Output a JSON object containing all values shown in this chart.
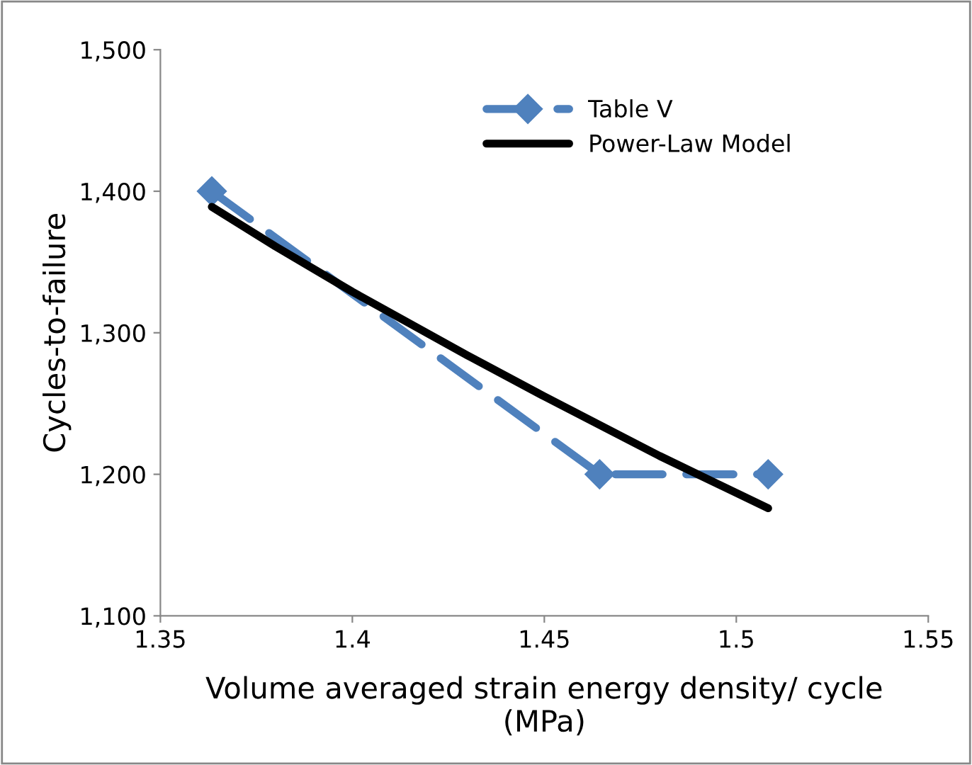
{
  "chart_data": {
    "type": "line",
    "xlabel": "Volume averaged strain energy density/ cycle\n(MPa)",
    "ylabel": "Cycles-to-failure",
    "series": [
      {
        "name": "Table V",
        "color": "#4f81bd",
        "x": [
          1.3634,
          1.4644,
          1.5083
        ],
        "values": [
          1400,
          1200,
          1200
        ],
        "marker": "diamond",
        "line_style": "dashed"
      },
      {
        "name": "Power-Law Model",
        "color": "#000000",
        "x": [
          1.3634,
          1.38,
          1.4,
          1.43,
          1.45,
          1.48,
          1.5083
        ],
        "values": [
          1389,
          1361,
          1329,
          1284,
          1255,
          1213,
          1176
        ],
        "marker": "none",
        "line_style": "solid"
      }
    ],
    "xlim": [
      1.35,
      1.55
    ],
    "xticks": [
      1.35,
      1.4,
      1.45,
      1.5,
      1.55
    ],
    "ylim": [
      1100,
      1500
    ],
    "yticks": [
      {
        "value": 1100,
        "label": "1,100"
      },
      {
        "value": 1200,
        "label": "1,200"
      },
      {
        "value": 1300,
        "label": "1,300"
      },
      {
        "value": 1400,
        "label": "1,400"
      },
      {
        "value": 1500,
        "label": "1,500"
      }
    ],
    "grid": false,
    "legend": "top right"
  }
}
